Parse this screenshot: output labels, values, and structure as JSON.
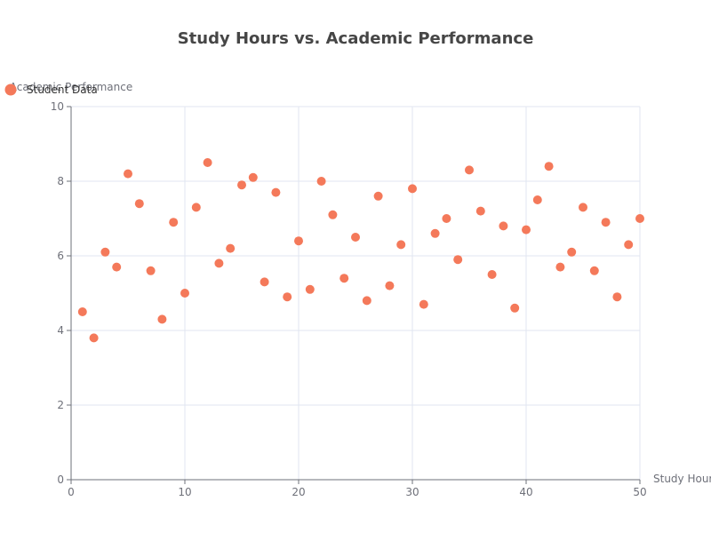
{
  "chart_data": {
    "type": "scatter",
    "title": "Study Hours vs. Academic Performance",
    "xlabel": "Study Hours",
    "ylabel": "Academic Performance",
    "xlim": [
      0,
      50
    ],
    "ylim": [
      0,
      10
    ],
    "x_ticks": [
      "0",
      "10",
      "20",
      "30",
      "40",
      "50"
    ],
    "y_ticks": [
      "0",
      "2",
      "4",
      "6",
      "8",
      "10"
    ],
    "grid": true,
    "legend_position": "top-left",
    "series": [
      {
        "name": "Student Data",
        "color": "#f4795a",
        "points": [
          [
            1,
            4.5
          ],
          [
            2,
            3.8
          ],
          [
            3,
            6.1
          ],
          [
            4,
            5.7
          ],
          [
            5,
            8.2
          ],
          [
            6,
            7.4
          ],
          [
            7,
            5.6
          ],
          [
            8,
            4.3
          ],
          [
            9,
            6.9
          ],
          [
            10,
            5.0
          ],
          [
            11,
            7.3
          ],
          [
            12,
            8.5
          ],
          [
            13,
            5.8
          ],
          [
            14,
            6.2
          ],
          [
            15,
            7.9
          ],
          [
            16,
            8.1
          ],
          [
            17,
            5.3
          ],
          [
            18,
            7.7
          ],
          [
            19,
            4.9
          ],
          [
            20,
            6.4
          ],
          [
            21,
            5.1
          ],
          [
            22,
            8.0
          ],
          [
            23,
            7.1
          ],
          [
            24,
            5.4
          ],
          [
            25,
            6.5
          ],
          [
            26,
            4.8
          ],
          [
            27,
            7.6
          ],
          [
            28,
            5.2
          ],
          [
            29,
            6.3
          ],
          [
            30,
            7.8
          ],
          [
            31,
            4.7
          ],
          [
            32,
            6.6
          ],
          [
            33,
            7.0
          ],
          [
            34,
            5.9
          ],
          [
            35,
            8.3
          ],
          [
            36,
            7.2
          ],
          [
            37,
            5.5
          ],
          [
            38,
            6.8
          ],
          [
            39,
            4.6
          ],
          [
            40,
            6.7
          ],
          [
            41,
            7.5
          ],
          [
            42,
            8.4
          ],
          [
            43,
            5.7
          ],
          [
            44,
            6.1
          ],
          [
            45,
            7.3
          ],
          [
            46,
            5.6
          ],
          [
            47,
            6.9
          ],
          [
            48,
            4.9
          ],
          [
            49,
            6.3
          ],
          [
            50,
            7.0
          ]
        ]
      }
    ]
  }
}
